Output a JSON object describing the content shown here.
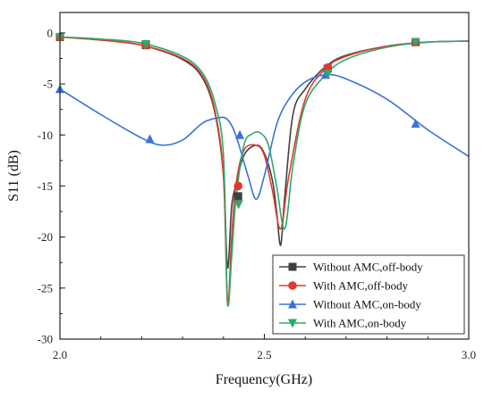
{
  "chart_data": {
    "type": "line",
    "xlabel": "Frequency(GHz)",
    "ylabel": "S11 (dB)",
    "xlim": [
      2.0,
      3.0
    ],
    "ylim": [
      -30,
      2
    ],
    "xticks": [
      2.0,
      2.5,
      3.0
    ],
    "xtick_labels": [
      "2.0",
      "2.5",
      "3.0"
    ],
    "yticks": [
      0,
      -5,
      -10,
      -15,
      -20,
      -25,
      -30
    ],
    "ytick_labels": [
      "0",
      "-5",
      "-10",
      "-15",
      "-20",
      "-25",
      "-30"
    ],
    "grid": false,
    "legend_position": "bottom-right",
    "series": [
      {
        "name": "Without AMC,off-body",
        "color": "#404040",
        "marker": "square",
        "x": [
          2.0,
          2.1,
          2.2,
          2.3,
          2.35,
          2.38,
          2.4,
          2.41,
          2.42,
          2.43,
          2.45,
          2.48,
          2.5,
          2.52,
          2.53,
          2.54,
          2.55,
          2.57,
          2.6,
          2.65,
          2.7,
          2.8,
          2.9,
          3.0
        ],
        "y": [
          -0.4,
          -0.7,
          -1.2,
          -2.6,
          -4.5,
          -8.0,
          -14.0,
          -23.0,
          -17.0,
          -15.0,
          -12.0,
          -11.0,
          -11.8,
          -14.5,
          -17.5,
          -20.8,
          -16.0,
          -8.0,
          -5.5,
          -3.3,
          -2.2,
          -1.3,
          -0.9,
          -0.8
        ],
        "marker_x": [
          2.0,
          2.21,
          2.436,
          2.655,
          2.87
        ],
        "marker_y": [
          -0.4,
          -1.2,
          -16.0,
          -3.5,
          -0.9
        ]
      },
      {
        "name": "With AMC,off-body",
        "color": "#e03a2f",
        "marker": "circle",
        "x": [
          2.0,
          2.1,
          2.2,
          2.3,
          2.35,
          2.38,
          2.4,
          2.41,
          2.42,
          2.43,
          2.45,
          2.48,
          2.5,
          2.52,
          2.54,
          2.56,
          2.6,
          2.65,
          2.7,
          2.8,
          2.9,
          3.0
        ],
        "y": [
          -0.4,
          -0.7,
          -1.2,
          -2.5,
          -4.3,
          -7.8,
          -14.0,
          -26.6,
          -20.0,
          -15.0,
          -11.5,
          -11.0,
          -12.0,
          -15.5,
          -19.2,
          -14.0,
          -6.5,
          -3.5,
          -2.3,
          -1.3,
          -0.9,
          -0.8
        ],
        "marker_x": [
          2.0,
          2.21,
          2.436,
          2.655,
          2.87
        ],
        "marker_y": [
          -0.4,
          -1.2,
          -15.0,
          -3.4,
          -0.9
        ]
      },
      {
        "name": "Without AMC,on-body",
        "color": "#3a72d8",
        "marker": "triangle-up",
        "x": [
          2.0,
          2.1,
          2.2,
          2.25,
          2.3,
          2.35,
          2.39,
          2.41,
          2.43,
          2.46,
          2.48,
          2.5,
          2.53,
          2.56,
          2.6,
          2.65,
          2.7,
          2.8,
          2.9,
          3.0
        ],
        "y": [
          -5.5,
          -8.0,
          -10.3,
          -11.0,
          -10.5,
          -8.8,
          -8.3,
          -8.5,
          -10.0,
          -14.0,
          -16.3,
          -14.0,
          -9.0,
          -6.5,
          -4.8,
          -4.1,
          -4.5,
          -6.5,
          -9.5,
          -12.1
        ],
        "marker_x": [
          2.0,
          2.22,
          2.44,
          2.65,
          2.87
        ],
        "marker_y": [
          -5.5,
          -10.4,
          -10.0,
          -4.1,
          -8.9
        ]
      },
      {
        "name": "With AMC,on-body",
        "color": "#2fa86a",
        "marker": "triangle-down",
        "x": [
          2.0,
          2.1,
          2.2,
          2.3,
          2.35,
          2.38,
          2.4,
          2.41,
          2.42,
          2.43,
          2.45,
          2.47,
          2.49,
          2.51,
          2.53,
          2.55,
          2.57,
          2.6,
          2.65,
          2.7,
          2.8,
          2.9,
          3.0
        ],
        "y": [
          -0.4,
          -0.6,
          -1.0,
          -2.3,
          -4.0,
          -7.0,
          -12.0,
          -26.4,
          -22.0,
          -16.5,
          -11.0,
          -9.9,
          -9.8,
          -11.0,
          -15.0,
          -19.2,
          -13.0,
          -7.0,
          -4.1,
          -2.6,
          -1.4,
          -0.9,
          -0.8
        ],
        "marker_x": [
          2.0,
          2.21,
          2.437,
          2.655,
          2.87
        ],
        "marker_y": [
          -0.4,
          -1.1,
          -16.8,
          -4.0,
          -0.9
        ]
      }
    ]
  }
}
